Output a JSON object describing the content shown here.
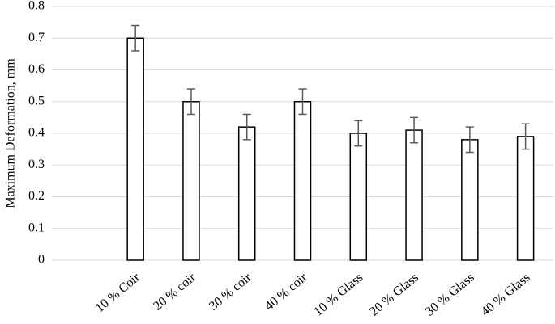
{
  "chart_data": {
    "type": "bar",
    "y_label": "Maximum Deformation, mm",
    "categories": [
      null,
      "10 % Coir",
      "20 % coir",
      "30 % coir",
      "40 % coir",
      "10 % Glass",
      "20 % Glass",
      "30 % Glass",
      "40 % Glass"
    ],
    "values": [
      null,
      0.7,
      0.5,
      0.42,
      0.5,
      0.4,
      0.41,
      0.38,
      0.39
    ],
    "errors": [
      null,
      0.04,
      0.04,
      0.04,
      0.04,
      0.04,
      0.04,
      0.04,
      0.04
    ],
    "color": "#ffffff",
    "edge_color": "#000000",
    "error_color": "#595959",
    "ylim": [
      0,
      0.8
    ],
    "yticks": [
      0,
      0.1,
      0.2,
      0.3,
      0.4,
      0.5,
      0.6,
      0.7,
      0.8
    ],
    "grid": true
  }
}
